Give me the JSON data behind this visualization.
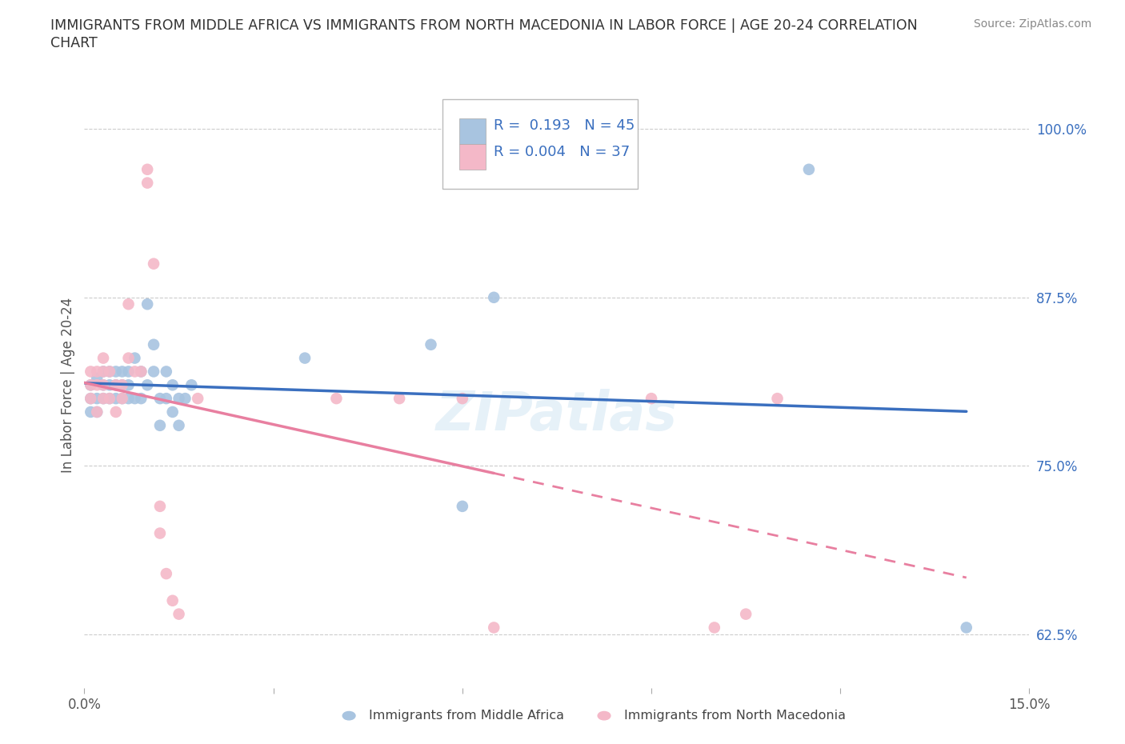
{
  "title_line1": "IMMIGRANTS FROM MIDDLE AFRICA VS IMMIGRANTS FROM NORTH MACEDONIA IN LABOR FORCE | AGE 20-24 CORRELATION",
  "title_line2": "CHART",
  "source": "Source: ZipAtlas.com",
  "xlabel_bottom": "Immigrants from Middle Africa",
  "xlabel_bottom2": "Immigrants from North Macedonia",
  "ylabel": "In Labor Force | Age 20-24",
  "xlim": [
    0.0,
    0.15
  ],
  "ylim": [
    0.585,
    1.035
  ],
  "yticks": [
    0.625,
    0.75,
    0.875,
    1.0
  ],
  "ytick_labels": [
    "62.5%",
    "75.0%",
    "87.5%",
    "100.0%"
  ],
  "xticks": [
    0.0,
    0.03,
    0.06,
    0.09,
    0.12,
    0.15
  ],
  "xtick_labels": [
    "0.0%",
    "",
    "",
    "",
    "",
    "15.0%"
  ],
  "blue_color": "#a8c4e0",
  "pink_color": "#f4b8c8",
  "blue_line_color": "#3a6fbf",
  "pink_line_color": "#e87fa0",
  "R_blue": 0.193,
  "N_blue": 45,
  "R_pink": 0.004,
  "N_pink": 37,
  "blue_scatter": [
    [
      0.001,
      0.8
    ],
    [
      0.001,
      0.79
    ],
    [
      0.001,
      0.81
    ],
    [
      0.002,
      0.8
    ],
    [
      0.002,
      0.815
    ],
    [
      0.002,
      0.79
    ],
    [
      0.003,
      0.8
    ],
    [
      0.003,
      0.81
    ],
    [
      0.003,
      0.82
    ],
    [
      0.004,
      0.81
    ],
    [
      0.004,
      0.8
    ],
    [
      0.004,
      0.82
    ],
    [
      0.005,
      0.8
    ],
    [
      0.005,
      0.82
    ],
    [
      0.005,
      0.81
    ],
    [
      0.006,
      0.8
    ],
    [
      0.006,
      0.82
    ],
    [
      0.006,
      0.81
    ],
    [
      0.007,
      0.8
    ],
    [
      0.007,
      0.82
    ],
    [
      0.007,
      0.81
    ],
    [
      0.008,
      0.83
    ],
    [
      0.008,
      0.8
    ],
    [
      0.009,
      0.82
    ],
    [
      0.009,
      0.8
    ],
    [
      0.01,
      0.87
    ],
    [
      0.01,
      0.81
    ],
    [
      0.011,
      0.84
    ],
    [
      0.011,
      0.82
    ],
    [
      0.012,
      0.8
    ],
    [
      0.012,
      0.78
    ],
    [
      0.013,
      0.82
    ],
    [
      0.013,
      0.8
    ],
    [
      0.014,
      0.81
    ],
    [
      0.014,
      0.79
    ],
    [
      0.015,
      0.8
    ],
    [
      0.015,
      0.78
    ],
    [
      0.016,
      0.8
    ],
    [
      0.017,
      0.81
    ],
    [
      0.035,
      0.83
    ],
    [
      0.055,
      0.84
    ],
    [
      0.06,
      0.72
    ],
    [
      0.065,
      0.875
    ],
    [
      0.115,
      0.97
    ],
    [
      0.14,
      0.63
    ]
  ],
  "pink_scatter": [
    [
      0.001,
      0.8
    ],
    [
      0.001,
      0.81
    ],
    [
      0.001,
      0.82
    ],
    [
      0.002,
      0.79
    ],
    [
      0.002,
      0.81
    ],
    [
      0.002,
      0.82
    ],
    [
      0.003,
      0.8
    ],
    [
      0.003,
      0.81
    ],
    [
      0.003,
      0.82
    ],
    [
      0.003,
      0.83
    ],
    [
      0.004,
      0.8
    ],
    [
      0.004,
      0.82
    ],
    [
      0.005,
      0.79
    ],
    [
      0.005,
      0.81
    ],
    [
      0.006,
      0.8
    ],
    [
      0.006,
      0.81
    ],
    [
      0.007,
      0.87
    ],
    [
      0.007,
      0.83
    ],
    [
      0.008,
      0.82
    ],
    [
      0.009,
      0.82
    ],
    [
      0.01,
      0.97
    ],
    [
      0.01,
      0.96
    ],
    [
      0.011,
      0.9
    ],
    [
      0.012,
      0.72
    ],
    [
      0.012,
      0.7
    ],
    [
      0.013,
      0.67
    ],
    [
      0.014,
      0.65
    ],
    [
      0.015,
      0.64
    ],
    [
      0.018,
      0.8
    ],
    [
      0.04,
      0.8
    ],
    [
      0.05,
      0.8
    ],
    [
      0.06,
      0.8
    ],
    [
      0.065,
      0.63
    ],
    [
      0.09,
      0.8
    ],
    [
      0.1,
      0.63
    ],
    [
      0.105,
      0.64
    ],
    [
      0.11,
      0.8
    ]
  ]
}
